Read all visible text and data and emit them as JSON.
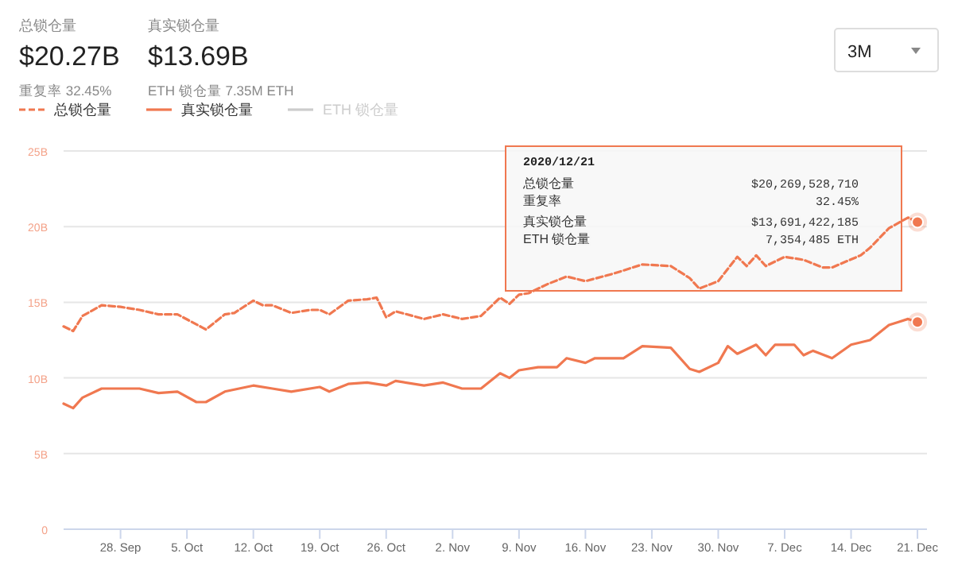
{
  "chart_data": {
    "type": "line",
    "legend": "top left",
    "grid": "y",
    "annotations": [
      "总锁仓量",
      "$20.27B",
      "重复率 32.45%",
      "真实锁仓量",
      "$13.69B",
      "ETH 锁仓量 7.35M ETH",
      "3M",
      "2020/12/21",
      "总锁仓量",
      "$20,269,528,710",
      "重复率",
      "32.45%",
      "真实锁仓量",
      "$13,691,422,185",
      "ETH 锁仓量",
      "7,354,485 ETH"
    ],
    "ylim": [
      0,
      25
    ],
    "yticks": [
      {
        "value": 0,
        "label": "0"
      },
      {
        "value": 5,
        "label": "5B"
      },
      {
        "value": 10,
        "label": "10B"
      },
      {
        "value": 15,
        "label": "15B"
      },
      {
        "value": 20,
        "label": "20B"
      },
      {
        "value": 25,
        "label": "25B"
      }
    ],
    "xlim": [
      "2020-09-22",
      "2020-12-22"
    ],
    "xticks": [
      {
        "value": "2020-09-28",
        "label": "28. Sep"
      },
      {
        "value": "2020-10-05",
        "label": "5. Oct"
      },
      {
        "value": "2020-10-12",
        "label": "12. Oct"
      },
      {
        "value": "2020-10-19",
        "label": "19. Oct"
      },
      {
        "value": "2020-10-26",
        "label": "26. Oct"
      },
      {
        "value": "2020-11-02",
        "label": "2. Nov"
      },
      {
        "value": "2020-11-09",
        "label": "9. Nov"
      },
      {
        "value": "2020-11-16",
        "label": "16. Nov"
      },
      {
        "value": "2020-11-23",
        "label": "23. Nov"
      },
      {
        "value": "2020-11-30",
        "label": "30. Nov"
      },
      {
        "value": "2020-12-07",
        "label": "7. Dec"
      },
      {
        "value": "2020-12-14",
        "label": "14. Dec"
      },
      {
        "value": "2020-12-21",
        "label": "21. Dec"
      }
    ],
    "series": [
      {
        "name": "总锁仓量",
        "color": "#f07850",
        "line_style": "dashed",
        "x": [
          "2020-09-22",
          "2020-09-23",
          "2020-09-24",
          "2020-09-26",
          "2020-09-28",
          "2020-09-30",
          "2020-10-02",
          "2020-10-04",
          "2020-10-07",
          "2020-10-09",
          "2020-10-10",
          "2020-10-12",
          "2020-10-13",
          "2020-10-14",
          "2020-10-16",
          "2020-10-18",
          "2020-10-19",
          "2020-10-20",
          "2020-10-22",
          "2020-10-24",
          "2020-10-25",
          "2020-10-26",
          "2020-10-27",
          "2020-10-30",
          "2020-11-01",
          "2020-11-03",
          "2020-11-05",
          "2020-11-07",
          "2020-11-08",
          "2020-11-09",
          "2020-11-10",
          "2020-11-12",
          "2020-11-14",
          "2020-11-16",
          "2020-11-19",
          "2020-11-22",
          "2020-11-25",
          "2020-11-27",
          "2020-11-28",
          "2020-11-30",
          "2020-12-02",
          "2020-12-03",
          "2020-12-04",
          "2020-12-05",
          "2020-12-07",
          "2020-12-09",
          "2020-12-11",
          "2020-12-12",
          "2020-12-15",
          "2020-12-16",
          "2020-12-18",
          "2020-12-20",
          "2020-12-21"
        ],
        "values": [
          13.4,
          13.1,
          14.1,
          14.8,
          14.7,
          14.5,
          14.2,
          14.2,
          13.2,
          14.2,
          14.3,
          15.1,
          14.8,
          14.8,
          14.3,
          14.5,
          14.5,
          14.2,
          15.1,
          15.2,
          15.3,
          14.0,
          14.4,
          13.9,
          14.2,
          13.9,
          14.1,
          15.3,
          14.9,
          15.5,
          15.6,
          16.2,
          16.7,
          16.4,
          16.9,
          17.5,
          17.4,
          16.6,
          15.9,
          16.4,
          18.0,
          17.4,
          18.1,
          17.4,
          18.0,
          17.8,
          17.3,
          17.3,
          18.1,
          18.6,
          19.9,
          20.6,
          20.3
        ]
      },
      {
        "name": "真实锁仓量",
        "color": "#f07850",
        "line_style": "solid",
        "x": [
          "2020-09-22",
          "2020-09-23",
          "2020-09-24",
          "2020-09-26",
          "2020-09-28",
          "2020-09-30",
          "2020-10-02",
          "2020-10-04",
          "2020-10-06",
          "2020-10-07",
          "2020-10-09",
          "2020-10-12",
          "2020-10-14",
          "2020-10-16",
          "2020-10-19",
          "2020-10-20",
          "2020-10-22",
          "2020-10-24",
          "2020-10-26",
          "2020-10-27",
          "2020-10-30",
          "2020-11-01",
          "2020-11-03",
          "2020-11-05",
          "2020-11-07",
          "2020-11-08",
          "2020-11-09",
          "2020-11-11",
          "2020-11-13",
          "2020-11-14",
          "2020-11-16",
          "2020-11-17",
          "2020-11-20",
          "2020-11-22",
          "2020-11-25",
          "2020-11-27",
          "2020-11-28",
          "2020-11-30",
          "2020-12-01",
          "2020-12-02",
          "2020-12-04",
          "2020-12-05",
          "2020-12-06",
          "2020-12-08",
          "2020-12-09",
          "2020-12-10",
          "2020-12-12",
          "2020-12-14",
          "2020-12-16",
          "2020-12-18",
          "2020-12-19",
          "2020-12-20",
          "2020-12-21"
        ],
        "values": [
          8.3,
          8.0,
          8.7,
          9.3,
          9.3,
          9.3,
          9.0,
          9.1,
          8.4,
          8.4,
          9.1,
          9.5,
          9.3,
          9.1,
          9.4,
          9.1,
          9.6,
          9.7,
          9.5,
          9.8,
          9.5,
          9.7,
          9.3,
          9.3,
          10.3,
          10.0,
          10.5,
          10.7,
          10.7,
          11.3,
          11.0,
          11.3,
          11.3,
          12.1,
          12.0,
          10.6,
          10.4,
          11.0,
          12.1,
          11.6,
          12.2,
          11.5,
          12.2,
          12.2,
          11.5,
          11.8,
          11.3,
          12.2,
          12.5,
          13.5,
          13.7,
          13.9,
          13.7
        ]
      },
      {
        "name": "ETH 锁仓量",
        "color": "#cccccc",
        "line_style": "solid"
      }
    ]
  }
}
